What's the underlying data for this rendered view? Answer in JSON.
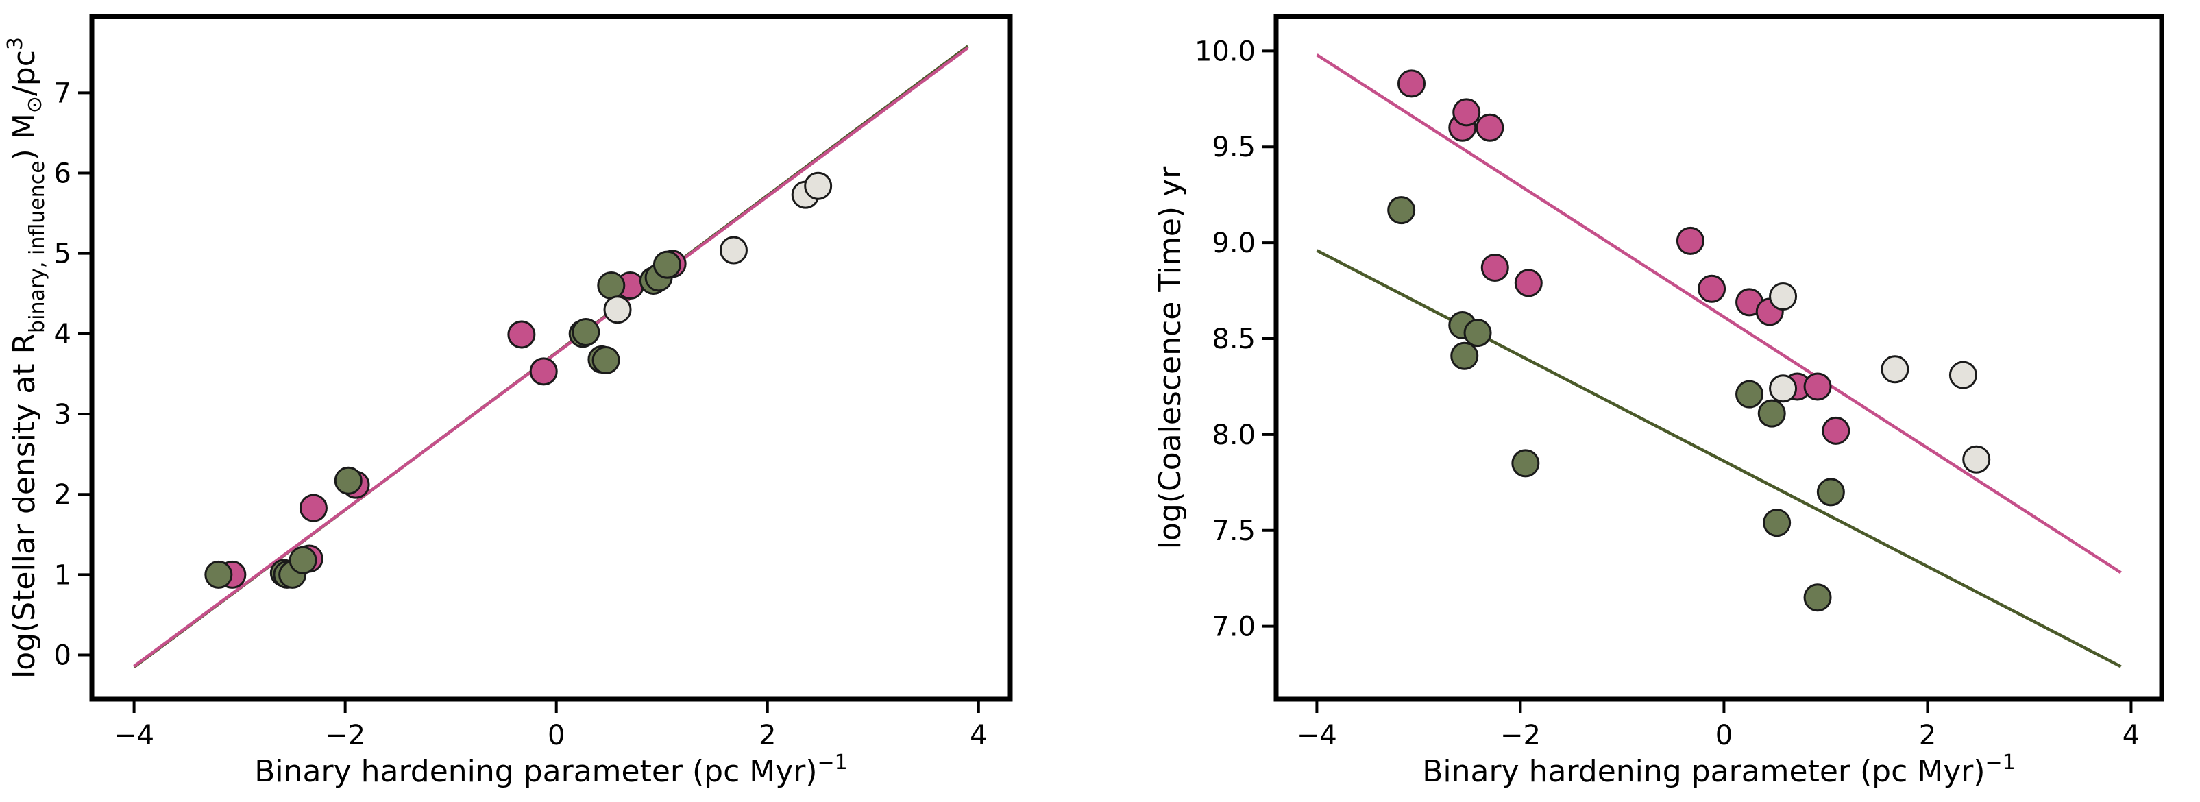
{
  "chart_data": [
    {
      "type": "scatter",
      "xlabel": "Binary hardening parameter (pc Myr)",
      "xlabel_exp": "−1",
      "ylabel_parts": {
        "pre": "log(Stellar density at R",
        "sub": "binary, influence",
        "mid": ") M",
        "sun": "⊙",
        "post": "/pc",
        "sup": "3"
      },
      "xlim": [
        -4.4,
        4.3
      ],
      "ylim": [
        -0.55,
        7.95
      ],
      "xticks": [
        -4,
        -2,
        0,
        2,
        4
      ],
      "xtick_labels": [
        "−4",
        "−2",
        "0",
        "2",
        "4"
      ],
      "yticks": [
        0,
        1,
        2,
        3,
        4,
        5,
        6,
        7
      ],
      "ytick_labels": [
        "0",
        "1",
        "2",
        "3",
        "4",
        "5",
        "6",
        "7"
      ],
      "colors": {
        "pink": "#c5508a",
        "green": "#6b7a52",
        "light": "#e4e2dc",
        "line_dark": "#4b5a2a"
      },
      "series": [
        {
          "name": "pink",
          "color": "#c5508a",
          "points": [
            [
              -3.07,
              1.0
            ],
            [
              -2.3,
              1.83
            ],
            [
              -2.34,
              1.2
            ],
            [
              -1.9,
              2.12
            ],
            [
              -0.33,
              3.99
            ],
            [
              -0.12,
              3.53
            ],
            [
              0.7,
              4.6
            ],
            [
              1.1,
              4.87
            ]
          ]
        },
        {
          "name": "green",
          "color": "#6b7a52",
          "points": [
            [
              -3.2,
              1.0
            ],
            [
              -2.58,
              1.02
            ],
            [
              -2.55,
              1.0
            ],
            [
              -2.5,
              1.0
            ],
            [
              -2.4,
              1.18
            ],
            [
              -1.97,
              2.17
            ],
            [
              0.25,
              4.0
            ],
            [
              0.28,
              4.02
            ],
            [
              0.43,
              3.68
            ],
            [
              0.47,
              3.67
            ],
            [
              0.52,
              4.6
            ],
            [
              0.92,
              4.66
            ],
            [
              0.97,
              4.7
            ],
            [
              1.05,
              4.86
            ]
          ]
        },
        {
          "name": "light",
          "color": "#e4e2dc",
          "points": [
            [
              0.58,
              4.3
            ],
            [
              1.68,
              5.04
            ],
            [
              2.36,
              5.73
            ],
            [
              2.48,
              5.84
            ]
          ]
        }
      ],
      "fit_lines": [
        {
          "name": "green-fit",
          "color": "#4b5a2a",
          "x": [
            -4.0,
            3.9
          ],
          "y": [
            -0.15,
            7.58
          ]
        },
        {
          "name": "pink-fit",
          "color": "#c5508a",
          "x": [
            -4.0,
            3.9
          ],
          "y": [
            -0.14,
            7.56
          ]
        }
      ]
    },
    {
      "type": "scatter",
      "xlabel": "Binary hardening parameter (pc Myr)",
      "xlabel_exp": "−1",
      "ylabel": "log(Coalescence Time) yr",
      "xlim": [
        -4.4,
        4.3
      ],
      "ylim": [
        6.62,
        10.18
      ],
      "xticks": [
        -4,
        -2,
        0,
        2,
        4
      ],
      "xtick_labels": [
        "−4",
        "−2",
        "0",
        "2",
        "4"
      ],
      "yticks": [
        7.0,
        7.5,
        8.0,
        8.5,
        9.0,
        9.5,
        10.0
      ],
      "ytick_labels": [
        "7.0",
        "7.5",
        "8.0",
        "8.5",
        "9.0",
        "9.5",
        "10.0"
      ],
      "colors": {
        "pink": "#c5508a",
        "green": "#6b7a52",
        "light": "#e4e2dc",
        "line_dark": "#4b5a2a"
      },
      "series": [
        {
          "name": "pink",
          "color": "#c5508a",
          "points": [
            [
              -3.07,
              9.83
            ],
            [
              -2.57,
              9.6
            ],
            [
              -2.53,
              9.68
            ],
            [
              -2.3,
              9.6
            ],
            [
              -2.25,
              8.87
            ],
            [
              -1.92,
              8.79
            ],
            [
              -0.33,
              9.01
            ],
            [
              -0.12,
              8.76
            ],
            [
              0.25,
              8.69
            ],
            [
              0.45,
              8.64
            ],
            [
              0.72,
              8.25
            ],
            [
              0.92,
              8.25
            ],
            [
              1.1,
              8.02
            ]
          ]
        },
        {
          "name": "green",
          "color": "#6b7a52",
          "points": [
            [
              -3.17,
              9.17
            ],
            [
              -2.57,
              8.57
            ],
            [
              -2.55,
              8.41
            ],
            [
              -2.42,
              8.53
            ],
            [
              -1.95,
              7.85
            ],
            [
              0.25,
              8.21
            ],
            [
              0.47,
              8.11
            ],
            [
              0.52,
              7.54
            ],
            [
              0.92,
              7.15
            ],
            [
              1.05,
              7.7
            ]
          ]
        },
        {
          "name": "light",
          "color": "#e4e2dc",
          "points": [
            [
              0.58,
              8.72
            ],
            [
              0.58,
              8.24
            ],
            [
              1.68,
              8.34
            ],
            [
              2.35,
              8.31
            ],
            [
              2.48,
              7.87
            ]
          ]
        }
      ],
      "fit_lines": [
        {
          "name": "pink-fit",
          "color": "#c5508a",
          "x": [
            -4.0,
            3.9
          ],
          "y": [
            9.98,
            7.28
          ]
        },
        {
          "name": "green-fit",
          "color": "#4b5a2a",
          "x": [
            -4.0,
            3.9
          ],
          "y": [
            8.96,
            6.79
          ]
        }
      ]
    }
  ]
}
